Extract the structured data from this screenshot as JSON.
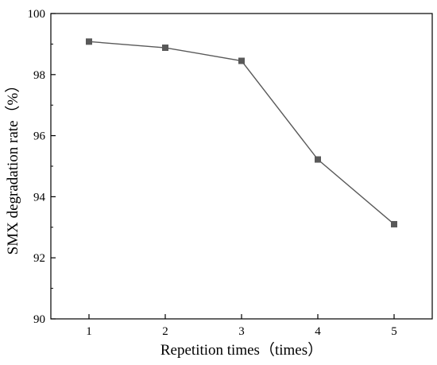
{
  "chart_data": {
    "type": "line",
    "xlabel": "Repetition times（times）",
    "ylabel": "SMX degradation rate（%）",
    "x": [
      1,
      2,
      3,
      4,
      5
    ],
    "xticks": [
      "1",
      "2",
      "3",
      "4",
      "5"
    ],
    "xlim": [
      0.5,
      5.5
    ],
    "ylim": [
      90,
      100
    ],
    "yticks": [
      "90",
      "92",
      "94",
      "96",
      "98",
      "100"
    ],
    "series": [
      {
        "values": [
          99.08,
          98.88,
          98.45,
          95.22,
          93.1
        ],
        "marker": "square",
        "color": "#595959"
      }
    ],
    "grid": false,
    "frame": "box"
  }
}
